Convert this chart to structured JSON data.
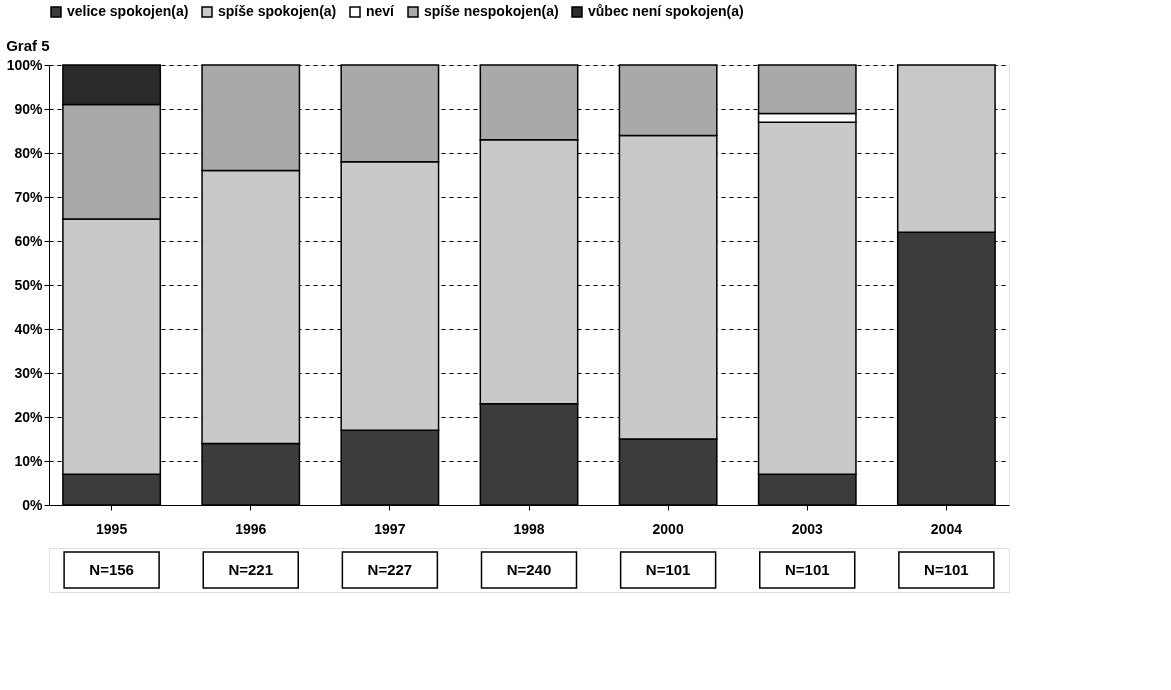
{
  "chart_data": {
    "type": "bar",
    "stacked": true,
    "title": "Graf 5",
    "categories": [
      "1995",
      "1996",
      "1997",
      "1998",
      "2000",
      "2003",
      "2004"
    ],
    "series": [
      {
        "name": "velice spokojen(a)",
        "color": "#3c3c3c",
        "values": [
          7,
          14,
          17,
          23,
          15,
          7,
          62
        ]
      },
      {
        "name": "spíše spokojen(a)",
        "color": "#c9c9c9",
        "values": [
          58,
          62,
          61,
          60,
          69,
          80,
          38
        ]
      },
      {
        "name": "neví",
        "color": "#ffffff",
        "values": [
          null,
          null,
          null,
          null,
          null,
          2,
          null
        ]
      },
      {
        "name": "spíše nespokojen(a)",
        "color": "#a9a9a9",
        "values": [
          26,
          24,
          22,
          17,
          16,
          11,
          null
        ]
      },
      {
        "name": "vůbec není spokojen(a)",
        "color": "#2b2b2b",
        "values": [
          9,
          null,
          null,
          null,
          null,
          null,
          null
        ]
      }
    ],
    "ylim": [
      0,
      100
    ],
    "yticks": [
      {
        "value": 0,
        "label": "0%"
      },
      {
        "value": 10,
        "label": "10%"
      },
      {
        "value": 20,
        "label": "20%"
      },
      {
        "value": 30,
        "label": "30%"
      },
      {
        "value": 40,
        "label": "40%"
      },
      {
        "value": 50,
        "label": "50%"
      },
      {
        "value": 60,
        "label": "60%"
      },
      {
        "value": 70,
        "label": "70%"
      },
      {
        "value": 80,
        "label": "80%"
      },
      {
        "value": 90,
        "label": "90%"
      },
      {
        "value": 100,
        "label": "100%"
      }
    ],
    "grid": "y",
    "legend": "top",
    "annotations": [
      "N=156",
      "N=221",
      "N=227",
      "N=240",
      "N=101",
      "N=101",
      "N=101"
    ]
  }
}
